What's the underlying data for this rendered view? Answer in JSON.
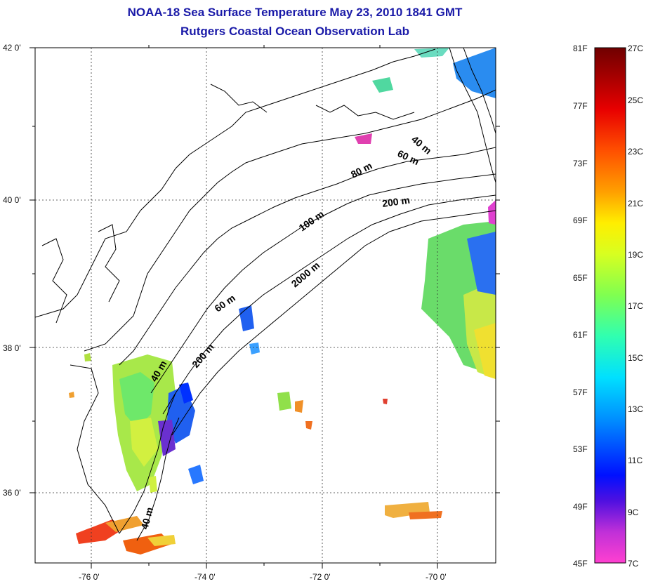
{
  "header": {
    "title_line1": "NOAA-18 Sea Surface Temperature May 23, 2010 1841 GMT",
    "title_line2": "Rutgers Coastal Ocean Observation Lab"
  },
  "map": {
    "lat_ticks": [
      "42 0'",
      "40 0'",
      "38 0'",
      "36 0'"
    ],
    "lon_ticks": [
      "-76 0'",
      "-74 0'",
      "-72 0'",
      "-70 0'"
    ],
    "contour_labels": [
      "40 m",
      "60 m",
      "80 m",
      "200 m",
      "100 m",
      "2000 m",
      "60 m",
      "200 m",
      "40 m",
      "40 m"
    ]
  },
  "colorbar": {
    "fahrenheit_labels": [
      "81F",
      "77F",
      "73F",
      "69F",
      "65F",
      "61F",
      "57F",
      "53F",
      "49F",
      "45F"
    ],
    "celsius_labels": [
      "27C",
      "25C",
      "23C",
      "21C",
      "19C",
      "17C",
      "15C",
      "13C",
      "11C",
      "9C",
      "7C"
    ],
    "colors": [
      "#7a0000",
      "#c00000",
      "#ff3000",
      "#ff8c00",
      "#ffe600",
      "#c8ff30",
      "#50ff80",
      "#00ffe0",
      "#00a0ff",
      "#0010ff",
      "#8020d0",
      "#ff40d0"
    ]
  }
}
